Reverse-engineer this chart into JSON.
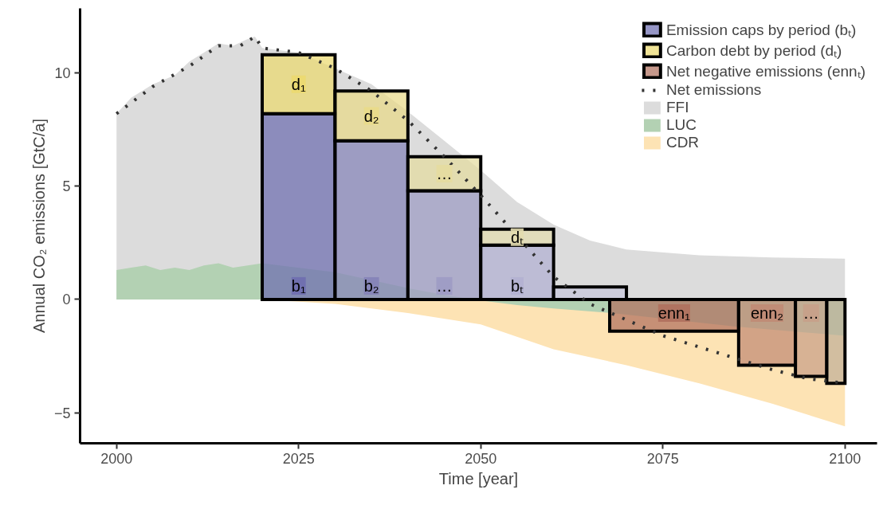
{
  "chart_data": {
    "type": "histogram",
    "xlabel": "Time [year]",
    "ylabel": "Annual CO₂ emissions [GtC/a]",
    "xlim": [
      1995,
      2104.4
    ],
    "ylim": [
      -6.35,
      12.85
    ],
    "xticks": [
      2000,
      2025,
      2050,
      2075,
      2100
    ],
    "yticks": [
      -5,
      0,
      5,
      10
    ],
    "grid": false,
    "legend": "top right",
    "series": [
      {
        "name": "FFI",
        "type": "area",
        "color": "#dcdcdc",
        "x": [
          2000,
          2002,
          2005,
          2008,
          2010,
          2012,
          2014,
          2016,
          2018,
          2019,
          2020,
          2025,
          2030,
          2035,
          2040,
          2045,
          2050,
          2055,
          2060,
          2065,
          2070,
          2080,
          2090,
          2100
        ],
        "values": [
          8.2,
          8.9,
          9.5,
          9.9,
          10.5,
          10.9,
          11.3,
          11.2,
          11.5,
          11.6,
          11.1,
          10.9,
          10.2,
          9.5,
          8.3,
          7.0,
          5.7,
          4.3,
          3.3,
          2.6,
          2.2,
          1.95,
          1.85,
          1.8
        ]
      },
      {
        "name": "CDR",
        "type": "area",
        "color": "#fde3b4",
        "x": [
          2000,
          2020,
          2030,
          2040,
          2050,
          2060,
          2070,
          2080,
          2090,
          2100
        ],
        "values": [
          0,
          0,
          -0.2,
          -0.6,
          -1.1,
          -2.2,
          -2.9,
          -3.7,
          -4.6,
          -5.6
        ]
      },
      {
        "name": "LUC",
        "type": "area",
        "color": "#b3d1b3",
        "x": [
          2000,
          2002,
          2004,
          2006,
          2008,
          2010,
          2012,
          2014,
          2016,
          2018,
          2020,
          2030,
          2040,
          2045,
          2050,
          2055,
          2060,
          2068,
          2085,
          2100
        ],
        "values": [
          1.3,
          1.4,
          1.5,
          1.3,
          1.4,
          1.3,
          1.5,
          1.6,
          1.4,
          1.5,
          1.6,
          1.2,
          0.5,
          0.2,
          -0.05,
          -0.25,
          -0.4,
          -0.6,
          -1.2,
          -1.6
        ]
      },
      {
        "name": "Emission caps by period (bₜ)",
        "bins": [
          2020,
          2030,
          2040,
          2050,
          2060,
          2070
        ],
        "values": [
          8.2,
          7.0,
          4.8,
          2.4,
          0.55
        ],
        "value_labels": [
          "b₁",
          "b₂",
          "…",
          "bₜ",
          null
        ],
        "colors": [
          "#6e6eb0",
          "#8583b8",
          "#9d9bc4",
          "#b2b0d2",
          "#c8c7dc"
        ]
      },
      {
        "name": "Carbon debt by period (dₜ)",
        "bins": [
          2020,
          2030,
          2040,
          2050,
          2060
        ],
        "base": [
          8.2,
          7.0,
          4.8,
          2.4
        ],
        "values": [
          2.6,
          2.2,
          1.5,
          0.7
        ],
        "value_labels": [
          "d₁",
          "d₂",
          "…",
          "dₜ"
        ],
        "colors": [
          "#ecd96f",
          "#e9da88",
          "#e5dca0",
          "#e3dcaf"
        ]
      },
      {
        "name": "Net negative emissions (ennₜ)",
        "bins": [
          2067.7,
          2085.4,
          2093.2,
          2097.5,
          2100
        ],
        "values": [
          -1.4,
          -2.9,
          -3.4,
          -3.7
        ],
        "value_labels": [
          "enn₁",
          "enn₂",
          "…",
          null
        ],
        "colors": [
          "#b0705e",
          "#c08a74",
          "#c8a088",
          "#c0b098"
        ]
      },
      {
        "name": "Net emissions",
        "type": "line",
        "color": "#333333",
        "line_style": "dotted",
        "marker": "none",
        "x": [
          2000,
          2005,
          2010,
          2014,
          2017,
          2019,
          2020,
          2025,
          2030,
          2035,
          2040,
          2045,
          2050,
          2055,
          2060,
          2065,
          2070,
          2075,
          2080,
          2085,
          2090,
          2095,
          2100
        ],
        "values": [
          8.2,
          9.4,
          10.3,
          11.2,
          11.2,
          11.6,
          11.1,
          10.9,
          10.2,
          9.2,
          7.9,
          6.3,
          4.6,
          2.8,
          1.0,
          -0.2,
          -0.9,
          -1.6,
          -2.1,
          -2.6,
          -3.1,
          -3.5,
          -3.7
        ]
      }
    ]
  }
}
